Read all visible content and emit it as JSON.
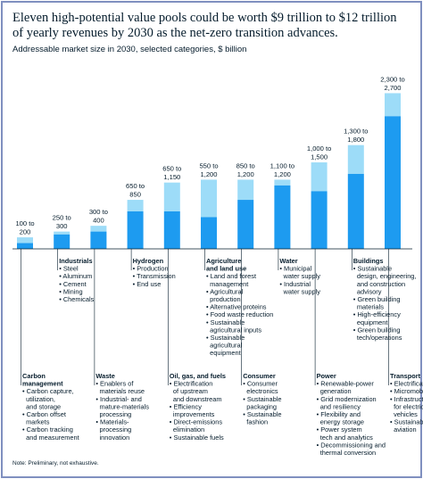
{
  "chart_data": {
    "type": "bar",
    "title": "Eleven high-potential value pools could be worth $9 trillion to $12 trillion of yearly revenues by 2030 as the net-zero transition advances.",
    "subtitle": "Addressable market size in 2030, selected categories, $ billion",
    "note": "Note: Preliminary, not exhaustive.",
    "ylim": [
      0,
      2800
    ],
    "colors": {
      "low": "#1d9bf0",
      "range": "#9ddcf8",
      "line": "#051c2c"
    },
    "categories": [
      {
        "name": [
          "Carbon",
          "management"
        ],
        "low": 100,
        "high": 200,
        "label": [
          "100 to",
          "200"
        ],
        "position": "bottom",
        "items": [
          [
            "Carbon capture,",
            "utilization,",
            "and storage"
          ],
          [
            "Carbon offset",
            "markets"
          ],
          [
            "Carbon tracking",
            "and measurement"
          ]
        ]
      },
      {
        "name": [
          "Industrials"
        ],
        "low": 250,
        "high": 300,
        "label": [
          "250 to",
          "300"
        ],
        "position": "top",
        "items": [
          [
            "Steel"
          ],
          [
            "Aluminum"
          ],
          [
            "Cement"
          ],
          [
            "Mining"
          ],
          [
            "Chemicals"
          ]
        ]
      },
      {
        "name": [
          "Waste"
        ],
        "low": 300,
        "high": 400,
        "label": [
          "300 to",
          "400"
        ],
        "position": "bottom",
        "items": [
          [
            "Enablers of",
            "materials reuse"
          ],
          [
            "Industrial- and",
            "mature-materials",
            "processing"
          ],
          [
            "Materials-",
            "processing",
            "innovation"
          ]
        ]
      },
      {
        "name": [
          "Hydrogen"
        ],
        "low": 650,
        "high": 850,
        "label": [
          "650 to",
          "850"
        ],
        "position": "top",
        "items": [
          [
            "Production"
          ],
          [
            "Transmission"
          ],
          [
            "End use"
          ]
        ]
      },
      {
        "name": [
          "Oil, gas, and fuels"
        ],
        "low": 650,
        "high": 1150,
        "label": [
          "650 to",
          "1,150"
        ],
        "position": "bottom",
        "items": [
          [
            "Electrification",
            "of upstream",
            "and downstream"
          ],
          [
            "Efficiency",
            "improvements"
          ],
          [
            "Direct-emissions",
            "elimination"
          ],
          [
            "Sustainable fuels"
          ]
        ]
      },
      {
        "name": [
          "Agriculture",
          "and land use"
        ],
        "low": 550,
        "high": 1200,
        "label": [
          "550 to",
          "1,200"
        ],
        "position": "top",
        "items": [
          [
            "Land and forest",
            "management"
          ],
          [
            "Agricultural",
            "production"
          ],
          [
            "Alternative proteins"
          ],
          [
            "Food waste reduction"
          ],
          [
            "Sustainable",
            "agricultural inputs"
          ],
          [
            "Sustainable",
            "agricultural",
            "equipment"
          ]
        ]
      },
      {
        "name": [
          "Consumer"
        ],
        "low": 850,
        "high": 1200,
        "label": [
          "850 to",
          "1,200"
        ],
        "position": "bottom",
        "items": [
          [
            "Consumer",
            "electronics"
          ],
          [
            "Sustainable",
            "packaging"
          ],
          [
            "Sustainable",
            "fashion"
          ]
        ]
      },
      {
        "name": [
          "Water"
        ],
        "low": 1100,
        "high": 1200,
        "label": [
          "1,100 to",
          "1,200"
        ],
        "position": "top",
        "items": [
          [
            "Municipal",
            "water supply"
          ],
          [
            "Industrial",
            "water supply"
          ]
        ]
      },
      {
        "name": [
          "Power"
        ],
        "low": 1000,
        "high": 1500,
        "label": [
          "1,000 to",
          "1,500"
        ],
        "position": "bottom",
        "items": [
          [
            "Renewable-power",
            "generation"
          ],
          [
            "Grid modernization",
            "and resiliency"
          ],
          [
            "Flexibility and",
            "energy storage"
          ],
          [
            "Power system",
            "tech and analytics"
          ],
          [
            "Decommissioning and",
            "thermal conversion"
          ]
        ]
      },
      {
        "name": [
          "Buildings"
        ],
        "low": 1300,
        "high": 1800,
        "label": [
          "1,300 to",
          "1,800"
        ],
        "position": "top",
        "items": [
          [
            "Sustainable",
            "design, engineering,",
            "and construction",
            "advisory"
          ],
          [
            "Green building",
            "materials"
          ],
          [
            "High-efficiency",
            "equipment"
          ],
          [
            "Green building",
            "tech/operations"
          ]
        ]
      },
      {
        "name": [
          "Transport"
        ],
        "low": 2300,
        "high": 2700,
        "label": [
          "2,300 to",
          "2,700"
        ],
        "position": "bottom",
        "items": [
          [
            "Electrification"
          ],
          [
            "Micromobility"
          ],
          [
            "Infrastructure",
            "for electric",
            "vehicles"
          ],
          [
            "Sustainable",
            "aviation"
          ]
        ]
      }
    ]
  }
}
